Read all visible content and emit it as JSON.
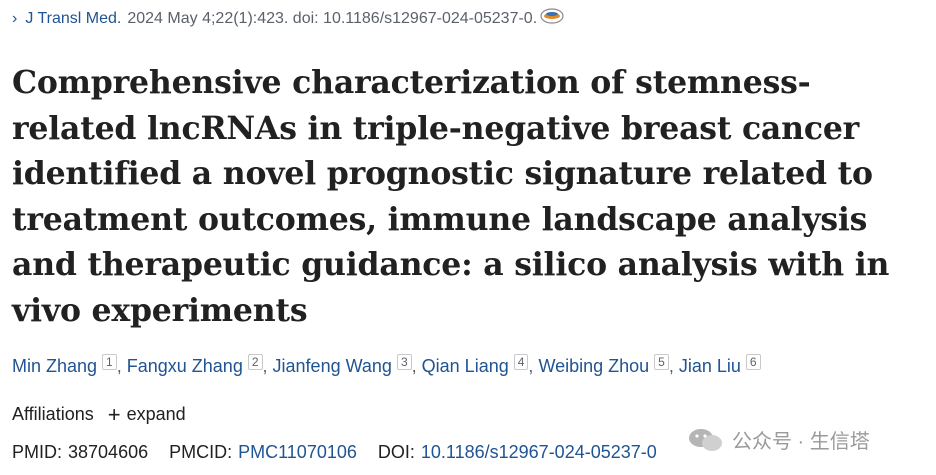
{
  "citation": {
    "journal": "J Transl Med.",
    "details": "2024 May 4;22(1):423. doi: 10.1186/s12967-024-05237-0."
  },
  "title": "Comprehensive characterization of stemness-related lncRNAs in triple-negative breast cancer identified a novel prognostic signature related to treatment outcomes, immune landscape analysis and therapeutic guidance: a silico analysis with in vivo experiments",
  "authors": [
    {
      "name": "Min Zhang",
      "aff": "1"
    },
    {
      "name": "Fangxu Zhang",
      "aff": "2"
    },
    {
      "name": "Jianfeng Wang",
      "aff": "3"
    },
    {
      "name": "Qian Liang",
      "aff": "4"
    },
    {
      "name": "Weibing Zhou",
      "aff": "5"
    },
    {
      "name": "Jian Liu",
      "aff": "6"
    }
  ],
  "affiliations": {
    "label": "Affiliations",
    "expand": "expand"
  },
  "ids": {
    "pmid_label": "PMID:",
    "pmid": "38704606",
    "pmcid_label": "PMCID:",
    "pmcid": "PMC11070106",
    "doi_label": "DOI:",
    "doi": "10.1186/s12967-024-05237-0"
  },
  "watermark": {
    "text": "公众号 · 生信塔"
  },
  "colors": {
    "link": "#205493",
    "meta": "#5b616b",
    "text": "#212121"
  }
}
